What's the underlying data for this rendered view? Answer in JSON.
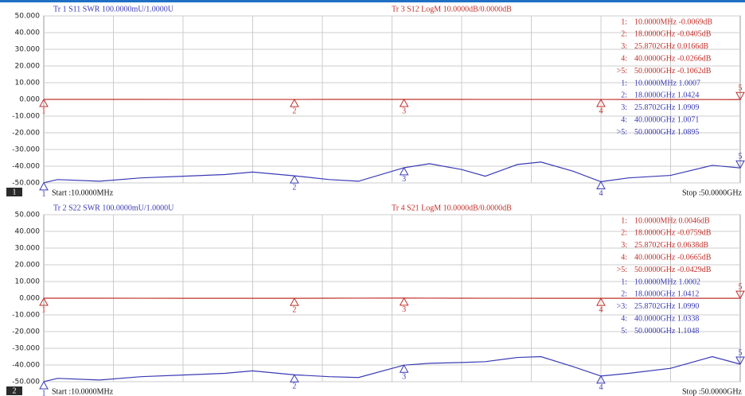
{
  "chart_data": [
    {
      "type": "line",
      "channel": "1",
      "start": "Start :10.0000MHz",
      "stop": "Stop :50.0000GHz",
      "x": [
        0.01,
        1,
        4,
        7,
        10,
        13,
        15,
        18,
        20.5,
        22.6,
        25.87,
        27.7,
        30,
        31.7,
        34,
        35.7,
        38,
        40,
        42,
        45,
        48,
        50
      ],
      "xlim": [
        0.01,
        50
      ],
      "ylim": [
        -50,
        50
      ],
      "y2lim": [
        1,
        2
      ],
      "grid": true,
      "yticks": [
        {
          "value": 50,
          "label": "50.000"
        },
        {
          "value": 40,
          "label": "40.000"
        },
        {
          "value": 30,
          "label": "30.000"
        },
        {
          "value": 20,
          "label": "20.000"
        },
        {
          "value": 10,
          "label": "10.000"
        },
        {
          "value": 0,
          "label": "0.000"
        },
        {
          "value": -10,
          "label": "-10.000"
        },
        {
          "value": -20,
          "label": "-20.000"
        },
        {
          "value": -30,
          "label": "-30.000"
        },
        {
          "value": -40,
          "label": "-40.000"
        },
        {
          "value": -50,
          "label": "-50.000"
        }
      ],
      "series": [
        {
          "name": "Tr 1  S11 SWR 100.0000mU/1.0000U",
          "color": "#3a3ab4",
          "axis": "y2",
          "values": [
            1.0007,
            1.02,
            1.01,
            1.03,
            1.04,
            1.05,
            1.065,
            1.0424,
            1.02,
            1.01,
            1.0909,
            1.115,
            1.08,
            1.04,
            1.11,
            1.125,
            1.07,
            1.0071,
            1.03,
            1.045,
            1.105,
            1.0895
          ],
          "markers": [
            {
              "label": "1",
              "x": 0.01,
              "value": 1.0007
            },
            {
              "label": "2",
              "x": 18,
              "value": 1.0424
            },
            {
              "label": "3",
              "x": 25.87,
              "value": 1.0909
            },
            {
              "label": "4",
              "x": 40,
              "value": 1.0071
            },
            {
              "label": "5",
              "x": 50,
              "value": 1.0895
            }
          ],
          "readouts": [
            {
              "id": "1:",
              "text": "10.0000MHz 1.0007"
            },
            {
              "id": "2:",
              "text": "18.0000GHz 1.0424"
            },
            {
              "id": "3:",
              "text": "25.8702GHz 1.0909"
            },
            {
              "id": "4:",
              "text": "40.0000GHz 1.0071"
            },
            {
              "id": ">5:",
              "text": "50.0000GHz 1.0895"
            }
          ]
        },
        {
          "name": "Tr 3  S12 LogM 10.0000dB/0.0000dB",
          "color": "#c0302a",
          "values": [
            -0.0069,
            0,
            0,
            0,
            -0.02,
            -0.03,
            -0.03,
            -0.0405,
            0,
            0.01,
            0.0166,
            0,
            -0.01,
            -0.02,
            -0.02,
            -0.02,
            -0.02,
            -0.0266,
            -0.05,
            -0.07,
            -0.09,
            -0.1062
          ],
          "markers": [
            {
              "label": "1",
              "x": 0.01,
              "value": -0.0069
            },
            {
              "label": "2",
              "x": 18,
              "value": -0.0405
            },
            {
              "label": "3",
              "x": 25.87,
              "value": 0.0166
            },
            {
              "label": "4",
              "x": 40,
              "value": -0.0266
            },
            {
              "label": "5",
              "x": 50,
              "value": -0.1062
            }
          ],
          "readouts": [
            {
              "id": "1:",
              "text": "10.0000MHz -0.0069dB"
            },
            {
              "id": "2:",
              "text": "18.0000GHz -0.0405dB"
            },
            {
              "id": "3:",
              "text": "25.8702GHz 0.0166dB"
            },
            {
              "id": "4:",
              "text": "40.0000GHz -0.0266dB"
            },
            {
              "id": ">5:",
              "text": "50.0000GHz -0.1062dB"
            }
          ]
        }
      ]
    },
    {
      "type": "line",
      "channel": "2",
      "start": "Start :10.0000MHz",
      "stop": "Stop :50.0000GHz",
      "x": [
        0.01,
        1,
        4,
        7,
        10,
        13,
        15,
        18,
        20.5,
        22.6,
        25.87,
        27.7,
        30,
        31.7,
        34,
        35.7,
        38,
        40,
        42,
        45,
        48,
        50
      ],
      "xlim": [
        0.01,
        50
      ],
      "ylim": [
        -50,
        50
      ],
      "y2lim": [
        1,
        2
      ],
      "grid": true,
      "yticks": [
        {
          "value": 50,
          "label": "50.000"
        },
        {
          "value": 40,
          "label": "40.000"
        },
        {
          "value": 30,
          "label": "30.000"
        },
        {
          "value": 20,
          "label": "20.000"
        },
        {
          "value": 10,
          "label": "10.000"
        },
        {
          "value": 0,
          "label": "0.000"
        },
        {
          "value": -10,
          "label": "-10.000"
        },
        {
          "value": -20,
          "label": "-20.000"
        },
        {
          "value": -30,
          "label": "-30.000"
        },
        {
          "value": -40,
          "label": "-40.000"
        },
        {
          "value": -50,
          "label": "-50.000"
        }
      ],
      "series": [
        {
          "name": "Tr 2  S22 SWR 100.0000mU/1.0000U",
          "color": "#3a3ab4",
          "axis": "y2",
          "values": [
            1.0002,
            1.02,
            1.01,
            1.03,
            1.04,
            1.05,
            1.065,
            1.0412,
            1.03,
            1.025,
            1.099,
            1.11,
            1.115,
            1.12,
            1.145,
            1.15,
            1.09,
            1.0338,
            1.05,
            1.08,
            1.15,
            1.1048
          ],
          "markers": [
            {
              "label": "1",
              "x": 0.01,
              "value": 1.0002
            },
            {
              "label": "2",
              "x": 18,
              "value": 1.0412
            },
            {
              "label": "3",
              "x": 25.87,
              "value": 1.099
            },
            {
              "label": "4",
              "x": 40,
              "value": 1.0338
            },
            {
              "label": "5",
              "x": 50,
              "value": 1.1048
            }
          ],
          "readouts": [
            {
              "id": "1:",
              "text": "10.0000MHz 1.0002"
            },
            {
              "id": "2:",
              "text": "18.0000GHz 1.0412"
            },
            {
              "id": ">3:",
              "text": "25.8702GHz 1.0990"
            },
            {
              "id": "4:",
              "text": "40.0000GHz 1.0338"
            },
            {
              "id": "5:",
              "text": "50.0000GHz 1.1048"
            }
          ]
        },
        {
          "name": "Tr 4  S21 LogM 10.0000dB/0.0000dB",
          "color": "#c0302a",
          "values": [
            0.0046,
            0,
            0,
            -0.03,
            -0.05,
            -0.06,
            -0.07,
            -0.0759,
            0,
            0.03,
            0.0638,
            0.02,
            0,
            -0.02,
            -0.04,
            -0.05,
            -0.06,
            -0.0665,
            -0.06,
            -0.05,
            -0.045,
            -0.0429
          ],
          "markers": [
            {
              "label": "1",
              "x": 0.01,
              "value": 0.0046
            },
            {
              "label": "2",
              "x": 18,
              "value": -0.0759
            },
            {
              "label": "3",
              "x": 25.87,
              "value": 0.0638
            },
            {
              "label": "4",
              "x": 40,
              "value": -0.0665
            },
            {
              "label": "5",
              "x": 50,
              "value": -0.0429
            }
          ],
          "readouts": [
            {
              "id": "1:",
              "text": "10.0000MHz 0.0046dB"
            },
            {
              "id": "2:",
              "text": "18.0000GHz -0.0759dB"
            },
            {
              "id": "3:",
              "text": "25.8702GHz 0.0638dB"
            },
            {
              "id": "4:",
              "text": "40.0000GHz -0.0665dB"
            },
            {
              "id": ">5:",
              "text": "50.0000GHz -0.0429dB"
            }
          ]
        }
      ]
    }
  ]
}
